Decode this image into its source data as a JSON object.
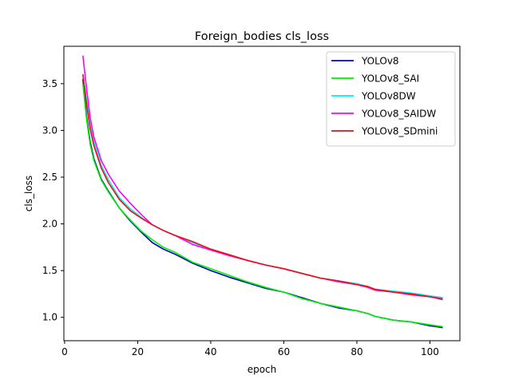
{
  "chart_data": {
    "type": "line",
    "title": "Foreign_bodies cls_loss",
    "xlabel": "epoch",
    "ylabel": "cls_loss",
    "xlim": [
      -0.2,
      108.2
    ],
    "ylim": [
      0.75,
      3.9
    ],
    "xticks": [
      0,
      20,
      40,
      60,
      80,
      100
    ],
    "yticks": [
      1.0,
      1.5,
      2.0,
      2.5,
      3.0,
      3.5
    ],
    "xtick_labels": [
      "0",
      "20",
      "40",
      "60",
      "80",
      "100"
    ],
    "ytick_labels": [
      "1.0",
      "1.5",
      "2.0",
      "2.5",
      "3.0",
      "3.5"
    ],
    "grid": false,
    "legend_position": "top-right",
    "series": [
      {
        "name": "YOLOv8",
        "color": "#0000cc",
        "x": [
          5,
          6,
          7,
          8,
          10,
          12,
          15,
          18,
          21,
          24,
          27,
          30,
          35,
          40,
          45,
          50,
          55,
          60,
          65,
          70,
          75,
          80,
          83,
          85,
          90,
          95,
          100,
          103.5
        ],
        "y": [
          3.55,
          3.15,
          2.88,
          2.7,
          2.48,
          2.35,
          2.17,
          2.03,
          1.91,
          1.8,
          1.73,
          1.68,
          1.58,
          1.5,
          1.43,
          1.37,
          1.31,
          1.27,
          1.21,
          1.15,
          1.1,
          1.07,
          1.04,
          1.01,
          0.97,
          0.95,
          0.91,
          0.89
        ]
      },
      {
        "name": "YOLOv8_SAI",
        "color": "#00ee00",
        "x": [
          5,
          6,
          7,
          8,
          10,
          12,
          15,
          18,
          21,
          24,
          27,
          30,
          35,
          40,
          45,
          50,
          55,
          60,
          65,
          70,
          75,
          80,
          83,
          85,
          90,
          95,
          100,
          103.5
        ],
        "y": [
          3.5,
          3.12,
          2.85,
          2.68,
          2.47,
          2.34,
          2.17,
          2.04,
          1.92,
          1.83,
          1.75,
          1.7,
          1.59,
          1.52,
          1.45,
          1.38,
          1.32,
          1.27,
          1.2,
          1.15,
          1.11,
          1.07,
          1.04,
          1.01,
          0.97,
          0.95,
          0.92,
          0.9
        ]
      },
      {
        "name": "YOLOv8DW",
        "color": "#00eeee",
        "x": [
          5,
          6,
          7,
          8,
          10,
          12,
          15,
          18,
          21,
          24,
          27,
          30,
          35,
          40,
          45,
          50,
          55,
          60,
          65,
          70,
          75,
          80,
          83,
          85,
          90,
          95,
          100,
          103.5
        ],
        "y": [
          3.6,
          3.32,
          3.05,
          2.88,
          2.63,
          2.47,
          2.28,
          2.16,
          2.07,
          1.99,
          1.93,
          1.88,
          1.8,
          1.73,
          1.67,
          1.61,
          1.56,
          1.52,
          1.47,
          1.42,
          1.39,
          1.36,
          1.33,
          1.3,
          1.28,
          1.26,
          1.23,
          1.21
        ]
      },
      {
        "name": "YOLOv8_SAIDW",
        "color": "#ff00ff",
        "x": [
          5,
          6,
          7,
          8,
          10,
          12,
          15,
          18,
          21,
          24,
          27,
          30,
          35,
          40,
          45,
          50,
          55,
          60,
          65,
          70,
          75,
          80,
          83,
          85,
          90,
          95,
          100,
          103.5
        ],
        "y": [
          3.8,
          3.45,
          3.14,
          2.93,
          2.68,
          2.53,
          2.35,
          2.22,
          2.1,
          1.99,
          1.93,
          1.88,
          1.78,
          1.72,
          1.66,
          1.61,
          1.56,
          1.52,
          1.47,
          1.42,
          1.38,
          1.35,
          1.32,
          1.29,
          1.27,
          1.24,
          1.22,
          1.2
        ]
      },
      {
        "name": "YOLOv8_SDmini",
        "color": "#ee1111",
        "x": [
          5,
          6,
          7,
          8,
          10,
          12,
          15,
          18,
          21,
          24,
          27,
          30,
          35,
          40,
          45,
          50,
          55,
          60,
          65,
          70,
          75,
          80,
          83,
          85,
          90,
          95,
          100,
          103.5
        ],
        "y": [
          3.6,
          3.28,
          3.02,
          2.84,
          2.6,
          2.44,
          2.26,
          2.14,
          2.06,
          1.99,
          1.93,
          1.88,
          1.81,
          1.73,
          1.67,
          1.61,
          1.56,
          1.52,
          1.47,
          1.42,
          1.39,
          1.35,
          1.33,
          1.3,
          1.27,
          1.25,
          1.22,
          1.19
        ]
      }
    ]
  }
}
